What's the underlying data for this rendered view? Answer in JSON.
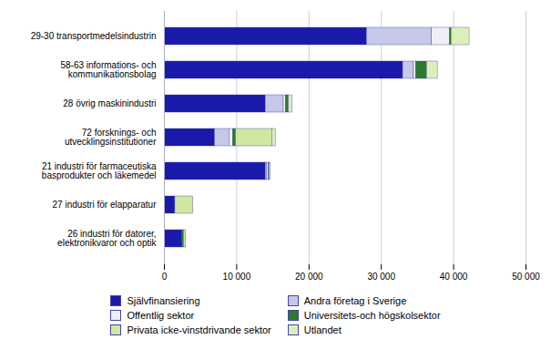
{
  "chart_data": {
    "type": "bar",
    "orientation": "horizontal",
    "stacked": true,
    "categories": [
      "29-30 transportmedelsindustrin",
      "58-63 informations- och\nkommunikationsbolag",
      "28 övrig maskinindustri",
      "72 forsknings- och\nutvecklingsinstitutioner",
      "21 industri för farmaceutiska\nbasprodukter och läkemedel",
      "27 industri för elapparatur",
      "26 industri för datorer,\nelektronikvaror och optik"
    ],
    "series": [
      {
        "name": "Självfinansiering",
        "color": "#1a1aaa",
        "values": [
          28000,
          33000,
          14000,
          7000,
          14000,
          1500,
          2500
        ]
      },
      {
        "name": "Andra företag i Sverige",
        "color": "#c5c8e8",
        "values": [
          9000,
          1500,
          2500,
          2000,
          200,
          0,
          0
        ]
      },
      {
        "name": "Offentlig sektor",
        "color": "#eeeef8",
        "values": [
          2500,
          300,
          300,
          500,
          200,
          0,
          0
        ]
      },
      {
        "name": "Universitets-och högskolsektor",
        "color": "#2d7a2d",
        "values": [
          200,
          1500,
          400,
          400,
          100,
          0,
          200
        ]
      },
      {
        "name": "Privata icke-vinstdrivande sektor",
        "color": "#cfe8a0",
        "values": [
          0,
          0,
          0,
          5000,
          0,
          2500,
          300
        ]
      },
      {
        "name": "Utlandet",
        "color": "#ddeebb",
        "values": [
          2500,
          1500,
          500,
          500,
          200,
          0,
          0
        ]
      }
    ],
    "xlim": [
      0,
      50000
    ],
    "xticks": [
      0,
      {
        "value": 10000,
        "label": "10 000"
      },
      {
        "value": 20000,
        "label": "20 000"
      },
      {
        "value": 30000,
        "label": "30 000"
      },
      {
        "value": 40000,
        "label": "40 000"
      },
      {
        "value": 50000,
        "label": "50 000"
      }
    ],
    "grid": true,
    "legend": "bottom"
  }
}
